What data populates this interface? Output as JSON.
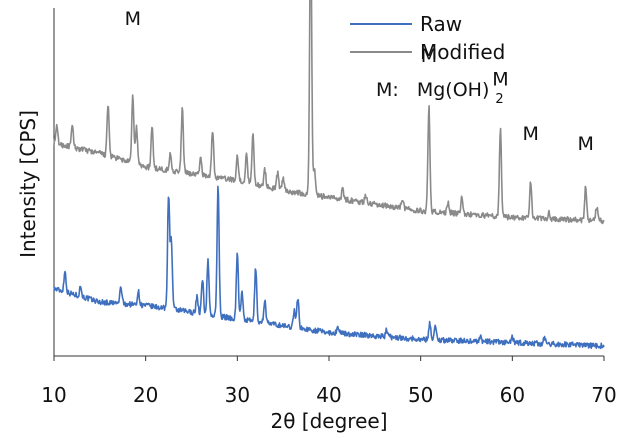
{
  "chart_data": {
    "type": "line",
    "xlabel": "2θ [degree]",
    "ylabel": "Intensity [CPS]",
    "x_ticks": [
      "10",
      "20",
      "30",
      "40",
      "50",
      "60",
      "70"
    ],
    "xlim": [
      10,
      70
    ],
    "ylim": [
      0,
      100
    ],
    "y_tick_labels": false,
    "legend": {
      "placement": "top-right",
      "entries": [
        {
          "name": "Raw",
          "color": "#3f6fbf"
        },
        {
          "name": "Modified",
          "color": "#8a8a8a"
        }
      ]
    },
    "annotation": {
      "prefix": "M:",
      "formula_main": "Mg(OH)",
      "formula_sub": "2"
    },
    "series": [
      {
        "name": "Raw",
        "color": "#3f6fbf",
        "baseline": [
          [
            10,
            17
          ],
          [
            15,
            13
          ],
          [
            20,
            12
          ],
          [
            25,
            10
          ],
          [
            30,
            8
          ],
          [
            35,
            6
          ],
          [
            40,
            4
          ],
          [
            45,
            3
          ],
          [
            50,
            2
          ],
          [
            55,
            1.5
          ],
          [
            60,
            1
          ],
          [
            65,
            0.5
          ],
          [
            70,
            0
          ]
        ],
        "peaks": [
          [
            11.2,
            6
          ],
          [
            12.9,
            3
          ],
          [
            17.3,
            5
          ],
          [
            19.2,
            4
          ],
          [
            22.5,
            34
          ],
          [
            22.8,
            20
          ],
          [
            25.6,
            5
          ],
          [
            26.2,
            10
          ],
          [
            26.8,
            16
          ],
          [
            27.9,
            39
          ],
          [
            30.0,
            20
          ],
          [
            30.5,
            8
          ],
          [
            32.0,
            16
          ],
          [
            33.0,
            7
          ],
          [
            36.2,
            5
          ],
          [
            36.6,
            9
          ],
          [
            41.0,
            2
          ],
          [
            46.3,
            2
          ],
          [
            51.0,
            5
          ],
          [
            51.6,
            4
          ],
          [
            56.5,
            1.5
          ],
          [
            60.0,
            1.5
          ],
          [
            63.5,
            1.5
          ]
        ]
      },
      {
        "name": "Modified",
        "color": "#8a8a8a",
        "baseline": [
          [
            10,
            60
          ],
          [
            15,
            57
          ],
          [
            20,
            53
          ],
          [
            25,
            51
          ],
          [
            30,
            49
          ],
          [
            35,
            46
          ],
          [
            40,
            44
          ],
          [
            45,
            42
          ],
          [
            50,
            40
          ],
          [
            55,
            39
          ],
          [
            60,
            38
          ],
          [
            65,
            37.5
          ],
          [
            70,
            37
          ]
        ],
        "peaks": [
          [
            10.3,
            5
          ],
          [
            12.0,
            6
          ],
          [
            15.9,
            15
          ],
          [
            18.6,
            20
          ],
          [
            19.0,
            11
          ],
          [
            20.7,
            12
          ],
          [
            22.7,
            5
          ],
          [
            24.0,
            19
          ],
          [
            26.0,
            5
          ],
          [
            27.3,
            14
          ],
          [
            30.0,
            7
          ],
          [
            31.0,
            8
          ],
          [
            31.7,
            15
          ],
          [
            33.0,
            5
          ],
          [
            34.4,
            5
          ],
          [
            35.0,
            4
          ],
          [
            38.0,
            82
          ],
          [
            38.4,
            8
          ],
          [
            41.5,
            3
          ],
          [
            44.0,
            2
          ],
          [
            48.0,
            3
          ],
          [
            50.9,
            31
          ],
          [
            53.0,
            3
          ],
          [
            54.5,
            5
          ],
          [
            58.7,
            26
          ],
          [
            62.0,
            11
          ],
          [
            64.0,
            2
          ],
          [
            68.0,
            10
          ],
          [
            69.2,
            4
          ]
        ]
      }
    ],
    "peak_labels": [
      {
        "text": "M",
        "x": 18.6,
        "y": 95
      },
      {
        "text": "M",
        "x": 38.0,
        "y": 138
      },
      {
        "text": "M",
        "x": 50.9,
        "y": 84
      },
      {
        "text": "M",
        "x": 58.7,
        "y": 77
      },
      {
        "text": "M",
        "x": 62.0,
        "y": 61
      },
      {
        "text": "M",
        "x": 68.0,
        "y": 58
      }
    ]
  }
}
